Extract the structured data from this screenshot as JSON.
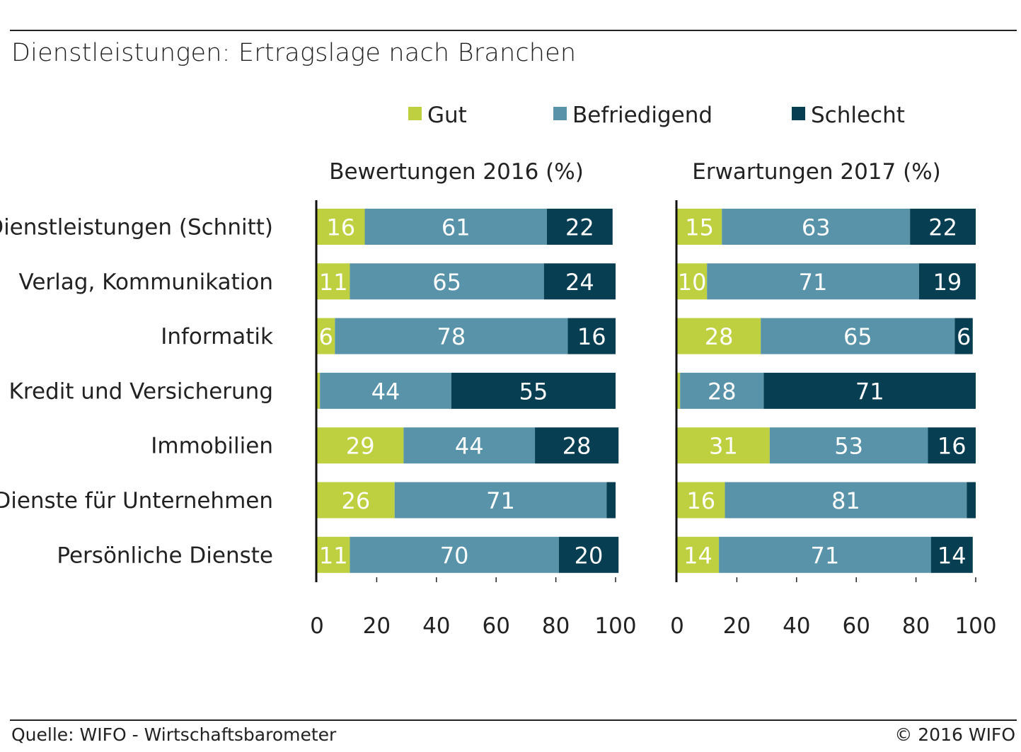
{
  "title": "Dienstleistungen: Ertragslage nach Branchen",
  "footer": {
    "source": "Quelle: WIFO - Wirtschaftsbarometer",
    "copyright": "© 2016 WIFO"
  },
  "colors": {
    "Gut": "#bed03f",
    "Befriedigend": "#5893a9",
    "Schlecht": "#073e52"
  },
  "chart_data": [
    {
      "type": "bar",
      "orientation": "horizontal",
      "stacked": true,
      "title": "Bewertungen 2016 (%)",
      "categories": [
        "Dienstleistungen (Schnitt)",
        "Verlag, Kommunikation",
        "Informatik",
        "Kredit und Versicherung",
        "Immobilien",
        "Dienste für Unternehmen",
        "Persönliche Dienste"
      ],
      "series": [
        {
          "name": "Gut",
          "values": [
            16,
            11,
            6,
            1,
            29,
            26,
            11
          ],
          "labels": [
            "16",
            "11",
            "6",
            "",
            "29",
            "26",
            "11"
          ]
        },
        {
          "name": "Befriedigend",
          "values": [
            61,
            65,
            78,
            44,
            44,
            71,
            70
          ],
          "labels": [
            "61",
            "65",
            "78",
            "44",
            "44",
            "71",
            "70"
          ]
        },
        {
          "name": "Schlecht",
          "values": [
            22,
            24,
            16,
            55,
            28,
            3,
            20
          ],
          "labels": [
            "22",
            "24",
            "16",
            "55",
            "28",
            "",
            "20"
          ]
        }
      ],
      "xlim": [
        0,
        100
      ],
      "xticks": [
        0,
        20,
        40,
        60,
        80,
        100
      ],
      "legend": "top"
    },
    {
      "type": "bar",
      "orientation": "horizontal",
      "stacked": true,
      "title": "Erwartungen 2017 (%)",
      "categories": [
        "Dienstleistungen (Schnitt)",
        "Verlag, Kommunikation",
        "Informatik",
        "Kredit und Versicherung",
        "Immobilien",
        "Dienste für Unternehmen",
        "Persönliche Dienste"
      ],
      "series": [
        {
          "name": "Gut",
          "values": [
            15,
            10,
            28,
            1,
            31,
            16,
            14
          ],
          "labels": [
            "15",
            "10",
            "28",
            "",
            "31",
            "16",
            "14"
          ]
        },
        {
          "name": "Befriedigend",
          "values": [
            63,
            71,
            65,
            28,
            53,
            81,
            71
          ],
          "labels": [
            "63",
            "71",
            "65",
            "28",
            "53",
            "81",
            "71"
          ]
        },
        {
          "name": "Schlecht",
          "values": [
            22,
            19,
            6,
            71,
            16,
            3,
            14
          ],
          "labels": [
            "22",
            "19",
            "6",
            "71",
            "16",
            "",
            "14"
          ]
        }
      ],
      "xlim": [
        0,
        100
      ],
      "xticks": [
        0,
        20,
        40,
        60,
        80,
        100
      ],
      "legend": "top"
    }
  ]
}
